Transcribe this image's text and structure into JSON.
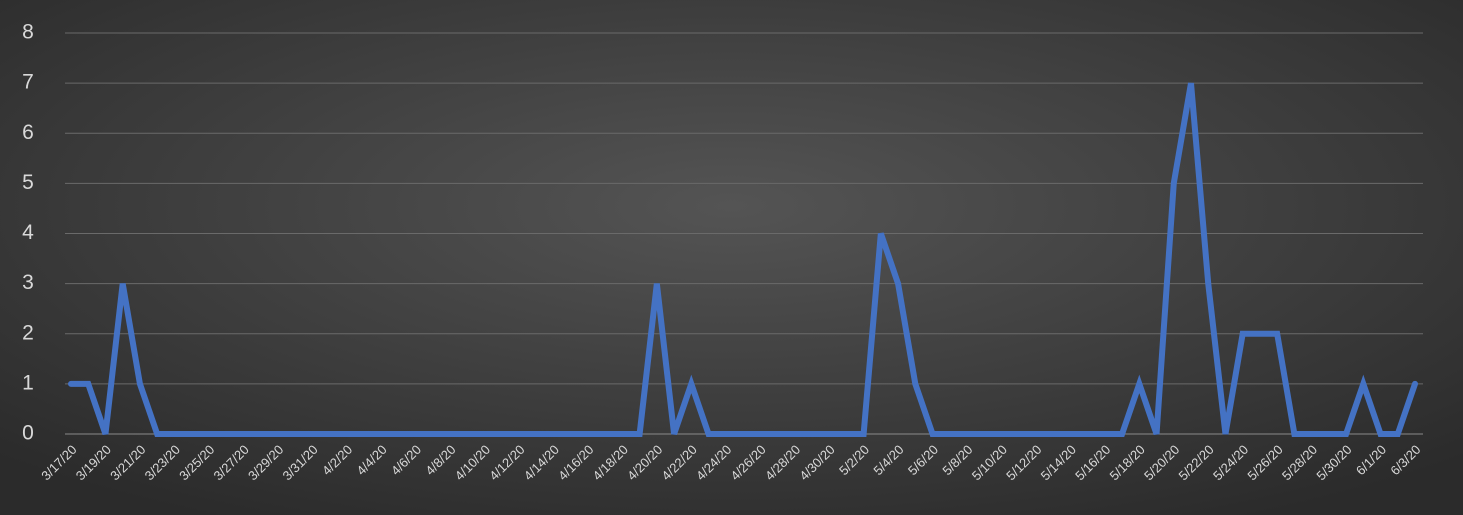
{
  "chart_data": {
    "type": "line",
    "categories": [
      "3/17/20",
      null,
      "3/19/20",
      null,
      "3/21/20",
      null,
      "3/23/20",
      null,
      "3/25/20",
      null,
      "3/27/20",
      null,
      "3/29/20",
      null,
      "3/31/20",
      null,
      "4/2/20",
      null,
      "4/4/20",
      null,
      "4/6/20",
      null,
      "4/8/20",
      null,
      "4/10/20",
      null,
      "4/12/20",
      null,
      "4/14/20",
      null,
      "4/16/20",
      null,
      "4/18/20",
      null,
      "4/20/20",
      null,
      "4/22/20",
      null,
      "4/24/20",
      null,
      "4/26/20",
      null,
      "4/28/20",
      null,
      "4/30/20",
      null,
      "5/2/20",
      null,
      "5/4/20",
      null,
      "5/6/20",
      null,
      "5/8/20",
      null,
      "5/10/20",
      null,
      "5/12/20",
      null,
      "5/14/20",
      null,
      "5/16/20",
      null,
      "5/18/20",
      null,
      "5/20/20",
      null,
      "5/22/20",
      null,
      "5/24/20",
      null,
      "5/26/20",
      null,
      "5/28/20",
      null,
      "5/30/20",
      null,
      "6/1/20",
      null,
      "6/3/20"
    ],
    "values": [
      1,
      1,
      0,
      3,
      1,
      0,
      0,
      0,
      0,
      0,
      0,
      0,
      0,
      0,
      0,
      0,
      0,
      0,
      0,
      0,
      0,
      0,
      0,
      0,
      0,
      0,
      0,
      0,
      0,
      0,
      0,
      0,
      0,
      0,
      3,
      0,
      1,
      0,
      0,
      0,
      0,
      0,
      0,
      0,
      0,
      0,
      0,
      4,
      3,
      1,
      0,
      0,
      0,
      0,
      0,
      0,
      0,
      0,
      0,
      0,
      0,
      0,
      1,
      0,
      5,
      7,
      3,
      0,
      2,
      2,
      2,
      0,
      0,
      0,
      0,
      1,
      0,
      0,
      1
    ],
    "color": "#4472c4",
    "ylim": [
      0,
      8
    ],
    "yticks": [
      0,
      1,
      2,
      3,
      4,
      5,
      6,
      7,
      8
    ],
    "grid": true
  }
}
